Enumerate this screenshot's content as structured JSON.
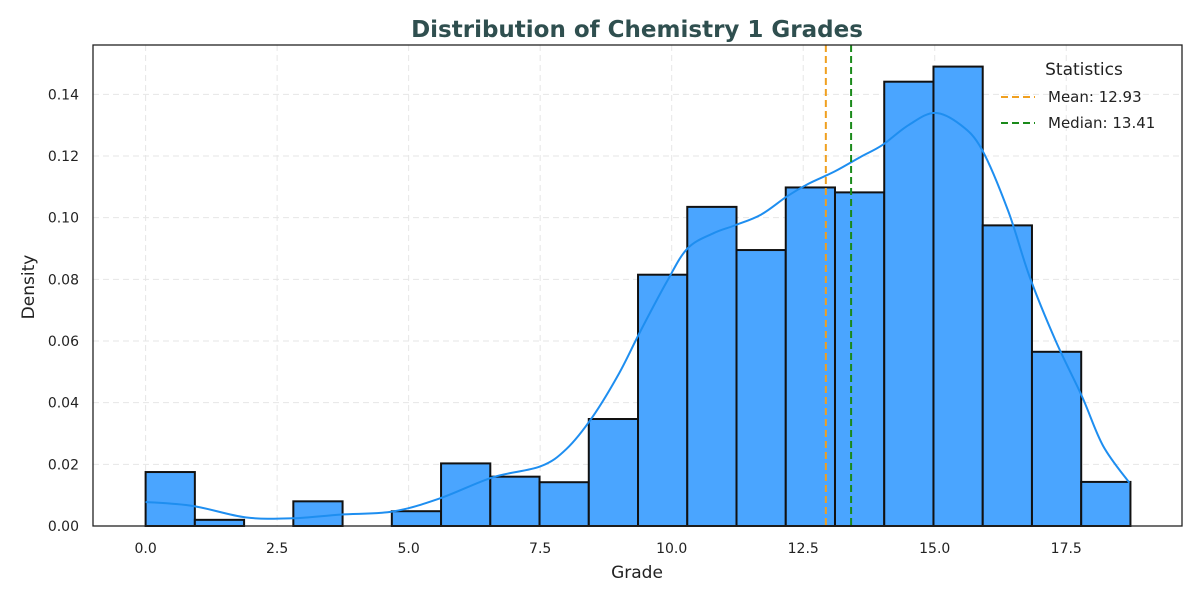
{
  "chart_data": {
    "type": "bar",
    "subtype": "histogram-with-kde",
    "title": "Distribution of Chemistry 1 Grades",
    "xlabel": "Grade",
    "ylabel": "Density",
    "xlim": [
      -1.0,
      19.7
    ],
    "ylim": [
      0,
      0.156
    ],
    "x_ticks": [
      "0.0",
      "2.5",
      "5.0",
      "7.5",
      "10.0",
      "12.5",
      "15.0",
      "17.5"
    ],
    "y_ticks": [
      "0.00",
      "0.02",
      "0.04",
      "0.06",
      "0.08",
      "0.10",
      "0.12",
      "0.14"
    ],
    "grid": true,
    "bins": [
      {
        "start": 0.0,
        "end": 0.936,
        "density": 0.0175
      },
      {
        "start": 0.936,
        "end": 1.872,
        "density": 0.002
      },
      {
        "start": 1.872,
        "end": 2.808,
        "density": 0.0
      },
      {
        "start": 2.808,
        "end": 3.744,
        "density": 0.008
      },
      {
        "start": 3.744,
        "end": 4.68,
        "density": 0.0
      },
      {
        "start": 4.68,
        "end": 5.616,
        "density": 0.0048
      },
      {
        "start": 5.616,
        "end": 6.552,
        "density": 0.0203
      },
      {
        "start": 6.552,
        "end": 7.488,
        "density": 0.016
      },
      {
        "start": 7.488,
        "end": 8.424,
        "density": 0.0142
      },
      {
        "start": 8.424,
        "end": 9.36,
        "density": 0.0347
      },
      {
        "start": 9.36,
        "end": 10.296,
        "density": 0.0815
      },
      {
        "start": 10.296,
        "end": 11.232,
        "density": 0.1035
      },
      {
        "start": 11.232,
        "end": 12.168,
        "density": 0.0895
      },
      {
        "start": 12.168,
        "end": 13.104,
        "density": 0.1098
      },
      {
        "start": 13.104,
        "end": 14.04,
        "density": 0.1082
      },
      {
        "start": 14.04,
        "end": 14.976,
        "density": 0.1441
      },
      {
        "start": 14.976,
        "end": 15.912,
        "density": 0.149
      },
      {
        "start": 15.912,
        "end": 16.848,
        "density": 0.0975
      },
      {
        "start": 16.848,
        "end": 17.784,
        "density": 0.0565
      },
      {
        "start": 17.784,
        "end": 18.72,
        "density": 0.0143
      }
    ],
    "kde": {
      "x": [
        0.0,
        0.9,
        1.9,
        2.8,
        3.7,
        4.7,
        5.6,
        6.6,
        7.5,
        8.0,
        8.5,
        9.0,
        9.4,
        9.9,
        10.3,
        10.8,
        11.2,
        11.7,
        12.2,
        12.6,
        13.1,
        13.6,
        14.0,
        14.5,
        15.0,
        15.5,
        15.9,
        16.4,
        16.8,
        17.3,
        17.8,
        18.2,
        18.7
      ],
      "y": [
        0.0078,
        0.0065,
        0.0028,
        0.0025,
        0.0037,
        0.0047,
        0.009,
        0.0158,
        0.0193,
        0.025,
        0.0355,
        0.0495,
        0.063,
        0.079,
        0.09,
        0.095,
        0.0975,
        0.101,
        0.107,
        0.111,
        0.115,
        0.1198,
        0.1235,
        0.13,
        0.134,
        0.13,
        0.122,
        0.102,
        0.081,
        0.06,
        0.042,
        0.026,
        0.014
      ]
    },
    "reference_lines": [
      {
        "name": "Mean: 12.93",
        "x": 12.93,
        "color": "#f0a020"
      },
      {
        "name": "Median: 13.41",
        "x": 13.41,
        "color": "#1a8a1a"
      }
    ],
    "legend": {
      "title": "Statistics",
      "placement": "top-right"
    },
    "colors": {
      "bar": "#4aa5ff",
      "bar_edge": "#111111",
      "kde": "#1e8ef0",
      "title": "#2f4f4f",
      "grid": "#e6e6e6"
    }
  }
}
